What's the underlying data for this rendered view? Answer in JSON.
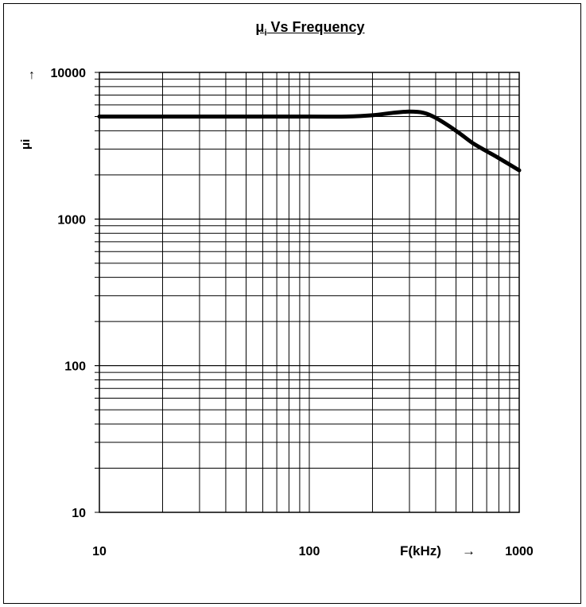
{
  "chart_data": {
    "type": "line",
    "title": "Vs Frequency",
    "title_symbol": "μ",
    "title_subscript": "i",
    "xlabel": "F(kHz)",
    "xlabel_arrow": "→",
    "ylabel": "μi",
    "y_arrow": "↑",
    "x_scale": "log",
    "y_scale": "log",
    "xlim": [
      10,
      1000
    ],
    "ylim": [
      10,
      10000
    ],
    "grid": true,
    "x_ticks": [
      "10",
      "100",
      "1000"
    ],
    "y_ticks": [
      "10",
      "100",
      "1000",
      "10000"
    ],
    "series": [
      {
        "x": [
          10,
          20,
          50,
          100,
          150,
          200,
          250,
          300,
          350,
          400,
          500,
          600,
          700,
          800,
          1000
        ],
        "y": [
          5000,
          5000,
          5000,
          5000,
          5000,
          5100,
          5300,
          5400,
          5300,
          4900,
          4000,
          3300,
          2900,
          2600,
          2150
        ],
        "color": "#000000"
      }
    ]
  }
}
